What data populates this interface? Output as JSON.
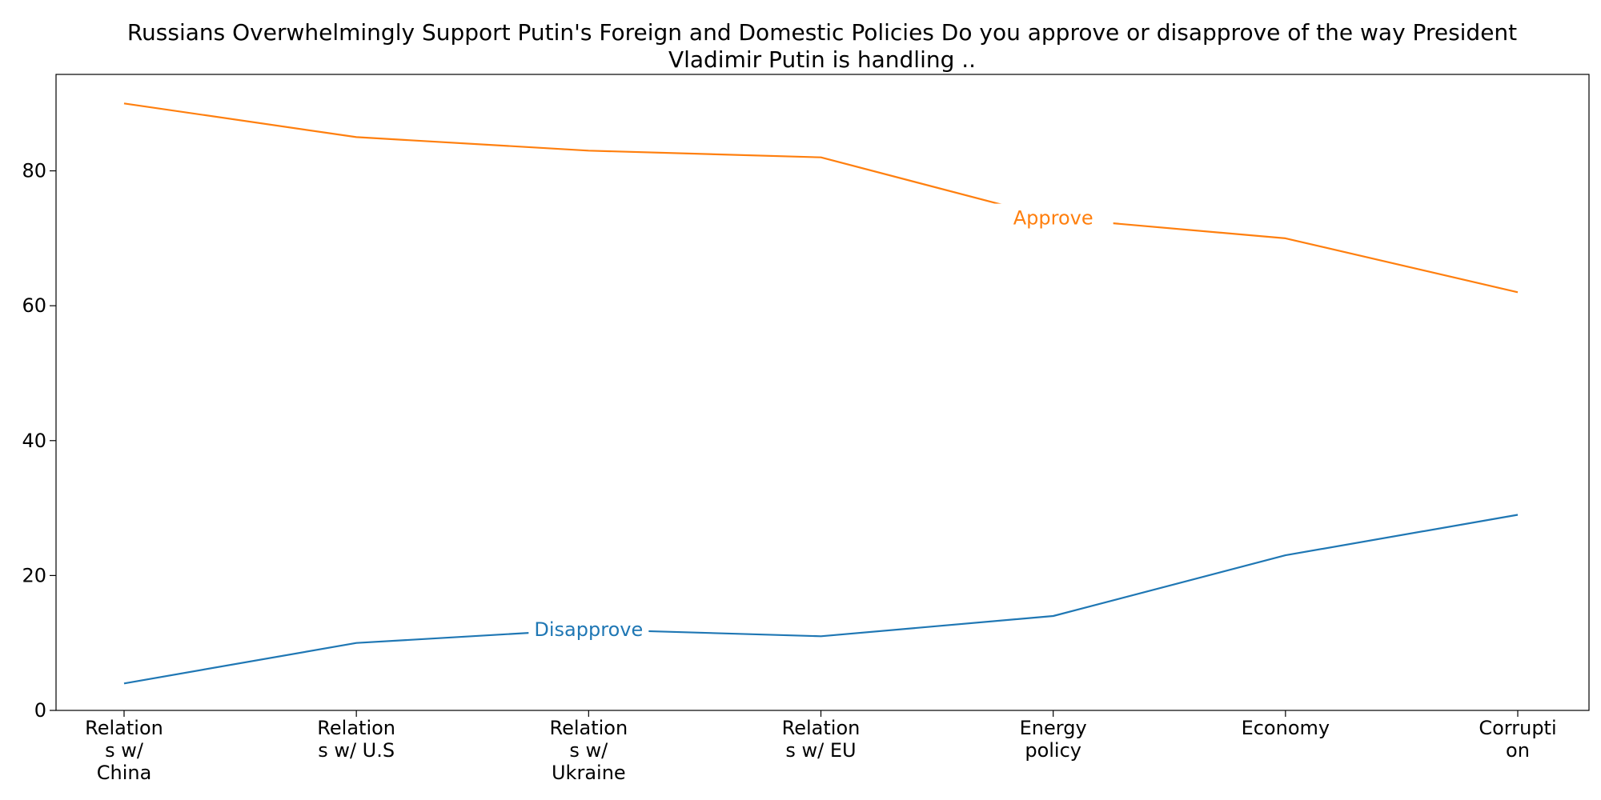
{
  "chart_data": {
    "type": "line",
    "title_lines": [
      "Russians Overwhelmingly Support Putin's Foreign and Domestic Policies Do you approve or disapprove of the way President",
      "Vladimir Putin is handling .."
    ],
    "categories": [
      [
        "Relation",
        "s w/",
        "China"
      ],
      [
        "Relation",
        "s w/ U.S"
      ],
      [
        "Relation",
        "s w/",
        "Ukraine"
      ],
      [
        "Relation",
        "s w/ EU"
      ],
      [
        "Energy",
        "policy"
      ],
      [
        "Economy"
      ],
      [
        "Corrupti",
        "on"
      ]
    ],
    "series": [
      {
        "name": "Disapprove",
        "values": [
          4,
          10,
          12,
          11,
          14,
          23,
          29
        ],
        "color": "#1f77b4",
        "label_at": 2
      },
      {
        "name": "Approve",
        "values": [
          90,
          85,
          83,
          82,
          73,
          70,
          62
        ],
        "color": "#ff7f0e",
        "label_at": 4
      }
    ],
    "yticks": [
      0,
      20,
      40,
      60,
      80
    ],
    "ylim": [
      0,
      94.3
    ],
    "xlabel": "",
    "ylabel": "",
    "grid": false,
    "legend": "inline labels"
  }
}
